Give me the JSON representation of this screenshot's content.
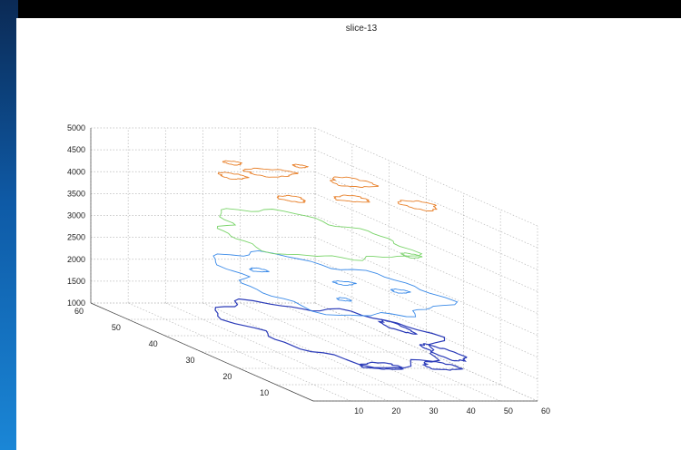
{
  "chart_data": {
    "type": "contour3d",
    "title": "slice-13",
    "xlabel": "",
    "ylabel": "",
    "zlabel": "",
    "xlim": [
      0,
      60
    ],
    "ylim": [
      0,
      60
    ],
    "zlim": [
      1000,
      5000
    ],
    "x_ticks": [
      "10",
      "20",
      "30",
      "40",
      "50",
      "60"
    ],
    "y_ticks": [
      "10",
      "20",
      "30",
      "40",
      "50",
      "60"
    ],
    "z_ticks": [
      "1000",
      "1500",
      "2000",
      "2500",
      "3000",
      "3500",
      "4000",
      "4500",
      "5000"
    ],
    "grid": true,
    "series": [
      {
        "level": 1500,
        "color": "#2a3ab8"
      },
      {
        "level": 2500,
        "color": "#3a8ae8"
      },
      {
        "level": 3500,
        "color": "#7ad46a"
      },
      {
        "level": 4500,
        "color": "#e8802a"
      }
    ]
  }
}
